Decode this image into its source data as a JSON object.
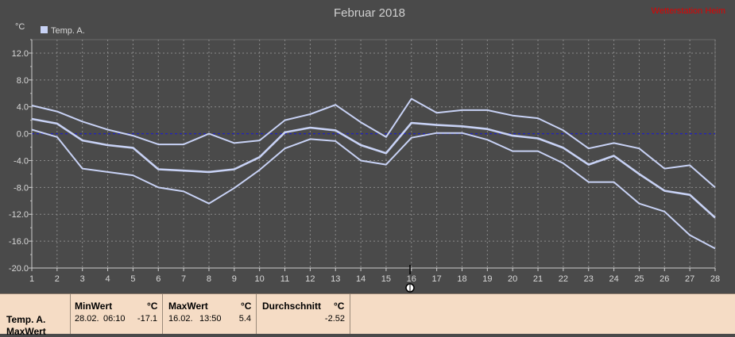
{
  "header": {
    "title": "Februar 2018",
    "corner_text": "Wetterstation Heim",
    "y_unit": "°C",
    "legend_label": "Temp. A."
  },
  "colors": {
    "background": "#4a4a4a",
    "line": "#c8d2f5",
    "zero_line": "#2020c0",
    "grid": "#8a8a8a",
    "panel": "#f5dcc5",
    "corner_text": "#e00000"
  },
  "chart_data": {
    "type": "line",
    "title": "Februar 2018",
    "ylabel": "°C",
    "x": [
      1,
      2,
      3,
      4,
      5,
      6,
      7,
      8,
      9,
      10,
      11,
      12,
      13,
      14,
      15,
      16,
      17,
      18,
      19,
      20,
      21,
      22,
      23,
      24,
      25,
      26,
      27,
      28
    ],
    "xlim": [
      1,
      28
    ],
    "ylim": [
      -20,
      14
    ],
    "yticks": [
      "12.0",
      "8.0",
      "4.0",
      "0.0",
      "-4.0",
      "-8.0",
      "-12.0",
      "-16.0",
      "-20.0"
    ],
    "ytick_values": [
      12,
      8,
      4,
      0,
      -4,
      -8,
      -12,
      -16,
      -20
    ],
    "zero_line": 0,
    "legend": "top-left",
    "grid": true,
    "series": [
      {
        "name": "Temp. A.",
        "values": [
          4.2,
          3.3,
          1.8,
          0.6,
          -0.3,
          -1.6,
          -1.6,
          0.0,
          -1.4,
          -1.0,
          2.0,
          2.9,
          4.3,
          1.7,
          -0.5,
          5.2,
          3.1,
          3.5,
          3.5,
          2.7,
          2.3,
          0.5,
          -2.2,
          -1.4,
          -2.2,
          -5.2,
          -4.7,
          -8.0
        ]
      },
      {
        "values": [
          2.2,
          1.5,
          -1.0,
          -1.7,
          -2.1,
          -5.3,
          -5.5,
          -5.7,
          -5.3,
          -3.5,
          0.2,
          0.9,
          0.5,
          -1.7,
          -2.9,
          1.6,
          1.3,
          1.1,
          0.7,
          -0.3,
          -0.7,
          -2.1,
          -4.6,
          -3.3,
          -6.0,
          -8.5,
          -9.1,
          -12.5
        ]
      },
      {
        "values": [
          0.6,
          -0.5,
          -5.2,
          -5.7,
          -6.2,
          -8.0,
          -8.6,
          -10.4,
          -8.1,
          -5.4,
          -2.2,
          -0.8,
          -1.1,
          -4.0,
          -4.6,
          -0.6,
          0.1,
          0.1,
          -0.9,
          -2.6,
          -2.6,
          -4.4,
          -7.2,
          -7.2,
          -10.4,
          -11.6,
          -15.1,
          -17.1
        ]
      }
    ]
  },
  "stats": {
    "series_label": "Temp. A.",
    "series_label2": "MaxWert",
    "min": {
      "header": "MinWert",
      "unit": "°C",
      "date": "28.02.",
      "time": "06:10",
      "value": "-17.1"
    },
    "max": {
      "header": "MaxWert",
      "unit": "°C",
      "date": "16.02.",
      "time": "13:50",
      "value": "5.4"
    },
    "avg": {
      "header": "Durchschnitt",
      "unit": "°C",
      "value": "-2.52"
    }
  }
}
